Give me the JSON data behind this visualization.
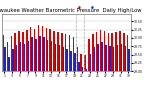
{
  "title": "Milwaukee Weather Barometric Pressure  Daily High/Low",
  "title_fontsize": 3.8,
  "bar_width": 0.38,
  "high_color": "#dd0000",
  "low_color": "#2222cc",
  "background_color": "#ffffff",
  "plot_bg_color": "#ffffff",
  "ylim": [
    29.0,
    30.72
  ],
  "yticks": [
    29.0,
    29.25,
    29.5,
    29.75,
    30.0,
    30.25,
    30.5
  ],
  "vline_positions": [
    18.5,
    20.5
  ],
  "high_values": [
    30.08,
    29.88,
    30.05,
    30.15,
    30.22,
    30.18,
    30.25,
    30.32,
    30.28,
    30.38,
    30.35,
    30.3,
    30.28,
    30.22,
    30.18,
    30.15,
    30.12,
    30.08,
    30.02,
    29.72,
    29.52,
    29.48,
    29.98,
    30.12,
    30.18,
    30.24,
    30.2,
    30.16,
    30.14,
    30.18,
    30.22,
    30.15,
    30.1
  ],
  "low_values": [
    29.72,
    29.42,
    29.68,
    29.8,
    29.88,
    29.82,
    29.92,
    30.02,
    29.98,
    30.05,
    30.02,
    29.95,
    29.9,
    29.82,
    29.78,
    29.72,
    29.68,
    29.62,
    29.55,
    29.28,
    29.12,
    29.08,
    29.52,
    29.72,
    29.82,
    29.88,
    29.8,
    29.75,
    29.72,
    29.78,
    29.82,
    29.75,
    29.68
  ]
}
